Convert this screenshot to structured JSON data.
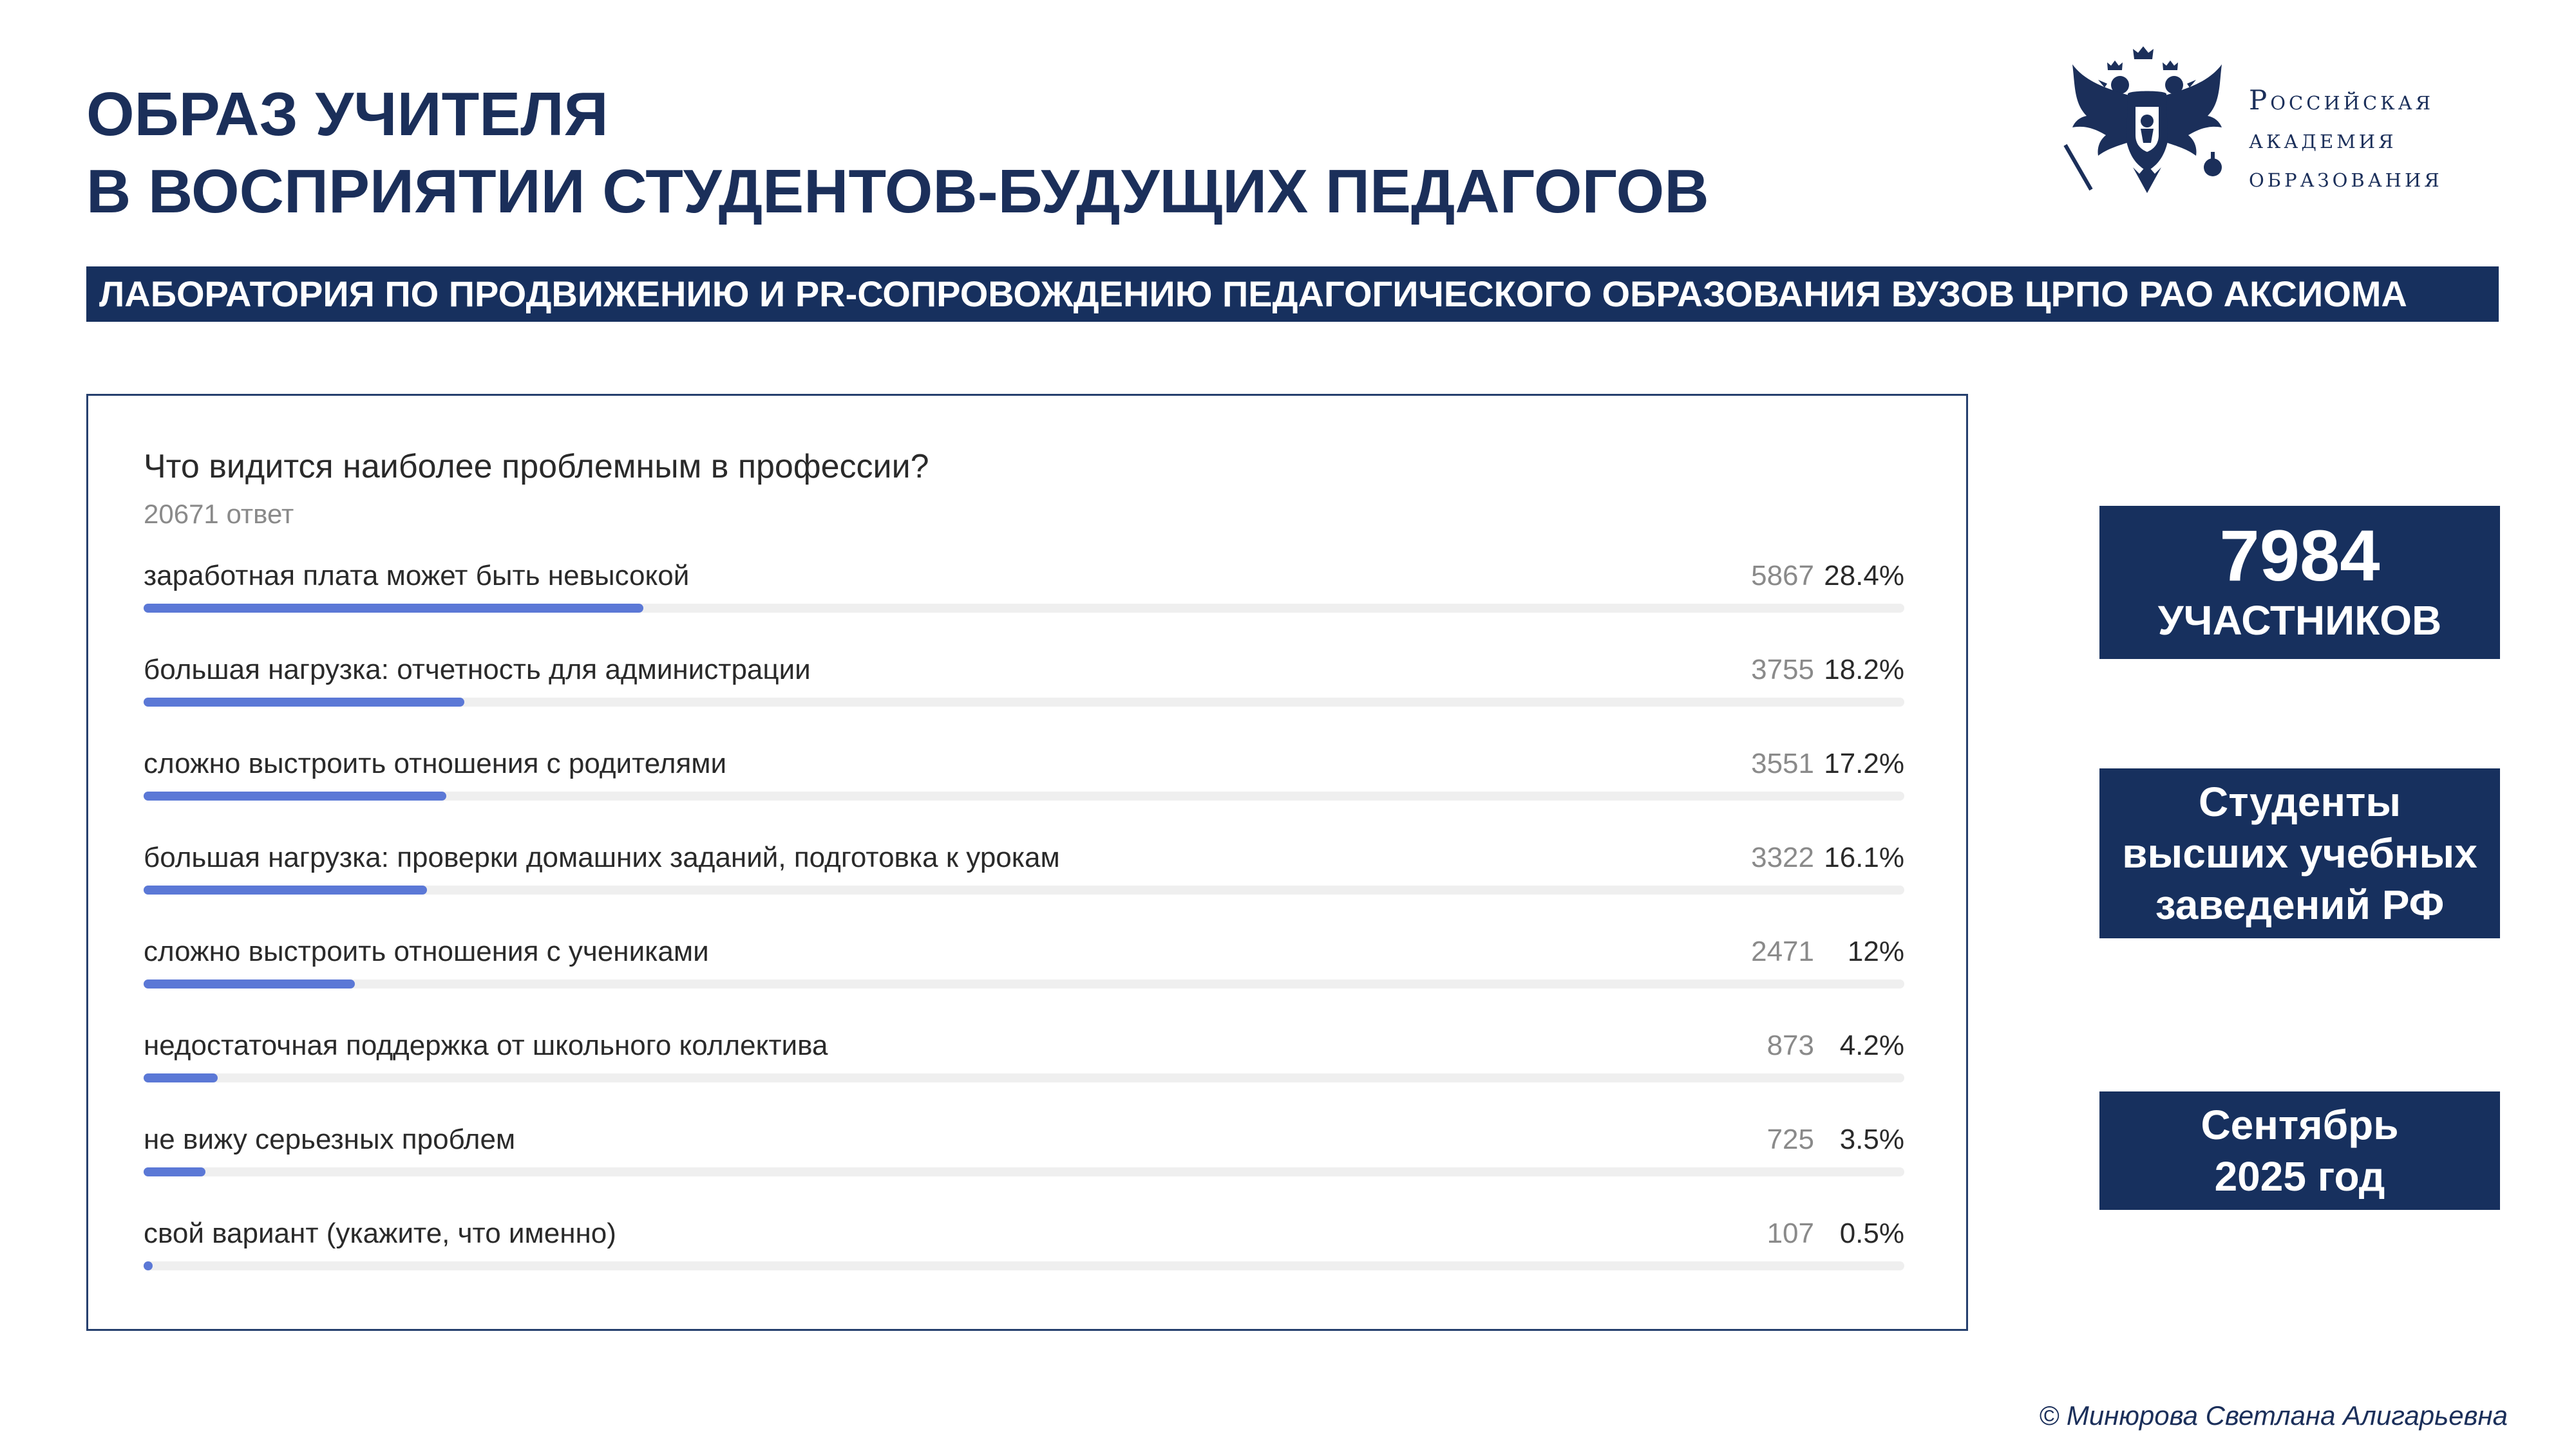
{
  "header": {
    "title_line1": "ОБРАЗ УЧИТЕЛЯ",
    "title_line2": "В ВОСПРИЯТИИ СТУДЕНТОВ-БУДУЩИХ ПЕДАГОГОВ",
    "banner": "ЛАБОРАТОРИЯ ПО ПРОДВИЖЕНИЮ И PR-СОПРОВОЖДЕНИЮ ПЕДАГОГИЧЕСКОГО ОБРАЗОВАНИЯ ВУЗОВ ЦРПО РАО АКСИОМА"
  },
  "logo": {
    "icon": "double-headed-eagle-emblem",
    "line1": "Российская",
    "line2": "академия",
    "line3": "образования"
  },
  "chart_data": {
    "type": "bar",
    "title": "Что видится наиболее проблемным в профессии?",
    "subtitle": "20671 ответ",
    "categories": [
      "заработная плата может быть невысокой",
      "большая нагрузка: отчетность для администрации",
      "сложно выстроить отношения с родителями",
      "большая нагрузка: проверки домашних заданий, подготовка к урокам",
      "сложно выстроить отношения с учениками",
      "недостаточная поддержка от школьного коллектива",
      "не вижу серьезных проблем",
      "свой вариант (укажите, что именно)"
    ],
    "counts": [
      5867,
      3755,
      3551,
      3322,
      2471,
      873,
      725,
      107
    ],
    "percent_labels": [
      "28.4%",
      "18.2%",
      "17.2%",
      "16.1%",
      "12%",
      "4.2%",
      "3.5%",
      "0.5%"
    ],
    "values": [
      28.4,
      18.2,
      17.2,
      16.1,
      12,
      4.2,
      3.5,
      0.5
    ],
    "xlim": [
      0,
      100
    ],
    "bar_color": "#5b78d6",
    "track_color": "#efefef"
  },
  "cards": {
    "participants_number": "7984",
    "participants_label": "УЧАСТНИКОВ",
    "students_line1": "Студенты",
    "students_line2": "высших учебных",
    "students_line3": "заведений РФ",
    "date_line1": "Сентябрь",
    "date_line2": "2025 год"
  },
  "footer": {
    "copyright": "© Минюрова Светлана Алигарьевна"
  },
  "colors": {
    "navy": "#17305e",
    "title": "#1b2f5a",
    "accent_bar": "#5b78d6"
  }
}
